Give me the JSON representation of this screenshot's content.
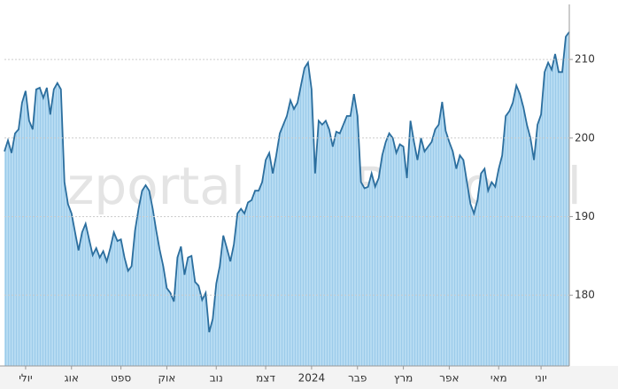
{
  "chart_data": {
    "type": "area",
    "watermark": "Bizportal",
    "xlim": [
      0,
      160
    ],
    "ylim": [
      171,
      217
    ],
    "yticks": [
      180,
      190,
      200,
      210
    ],
    "grid": true,
    "line_color": "#2b6e9e",
    "fill_color": "#acd5ef",
    "xticks": [
      {
        "value": 6,
        "label": "יולי"
      },
      {
        "value": 19,
        "label": "אוג"
      },
      {
        "value": 33,
        "label": "ספט"
      },
      {
        "value": 46,
        "label": "אוק"
      },
      {
        "value": 60,
        "label": "נוב"
      },
      {
        "value": 74,
        "label": "דצמ"
      },
      {
        "value": 87,
        "label": "2024"
      },
      {
        "value": 100,
        "label": "פבר"
      },
      {
        "value": 113,
        "label": "מרץ"
      },
      {
        "value": 126,
        "label": "אפר"
      },
      {
        "value": 140,
        "label": "מאי"
      },
      {
        "value": 152,
        "label": "יוני"
      }
    ],
    "values": [
      198.3,
      199.7,
      198.1,
      200.6,
      201.1,
      204.5,
      206,
      202.2,
      201.1,
      206.2,
      206.4,
      205.1,
      206.4,
      203,
      206.2,
      207,
      206.2,
      194.4,
      191.6,
      190.4,
      188,
      185.7,
      188,
      189.1,
      187.1,
      185.1,
      186,
      184.8,
      185.6,
      184.3,
      186,
      188,
      186.9,
      187.1,
      184.8,
      183.1,
      183.7,
      188.2,
      191,
      193.3,
      194,
      193.3,
      191,
      188.2,
      185.7,
      183.7,
      180.9,
      180.3,
      179.2,
      184.8,
      186.2,
      182.6,
      184.8,
      185,
      181.7,
      181.2,
      179.4,
      180.3,
      175.3,
      177,
      181.5,
      183.7,
      187.6,
      186,
      184.3,
      186.5,
      190.4,
      191,
      190.4,
      191.8,
      192.1,
      193.3,
      193.3,
      194.4,
      197.2,
      198.1,
      195.5,
      197.8,
      200.6,
      201.7,
      202.8,
      204.8,
      203.7,
      204.5,
      206.7,
      208.9,
      209.6,
      206.2,
      195.5,
      202.2,
      201.7,
      202.2,
      201.1,
      198.9,
      200.8,
      200.6,
      201.7,
      202.8,
      202.8,
      205.6,
      202.8,
      194.4,
      193.6,
      193.8,
      195.5,
      193.8,
      194.9,
      197.8,
      199.5,
      200.6,
      200,
      198.1,
      199.2,
      198.9,
      194.9,
      202.2,
      199.5,
      197.2,
      200,
      198.3,
      198.9,
      199.5,
      201.1,
      201.7,
      204.6,
      200.9,
      199.5,
      198.3,
      196.1,
      197.8,
      197.2,
      194.4,
      191.6,
      190.4,
      192.1,
      195.5,
      196.1,
      193.3,
      194.4,
      193.8,
      196.1,
      197.8,
      202.8,
      203.4,
      204.5,
      206.7,
      205.6,
      203.9,
      201.7,
      200,
      197.2,
      201.7,
      203,
      208.4,
      209.6,
      208.7,
      210.7,
      208.4,
      208.4,
      212.9,
      213.5
    ]
  }
}
